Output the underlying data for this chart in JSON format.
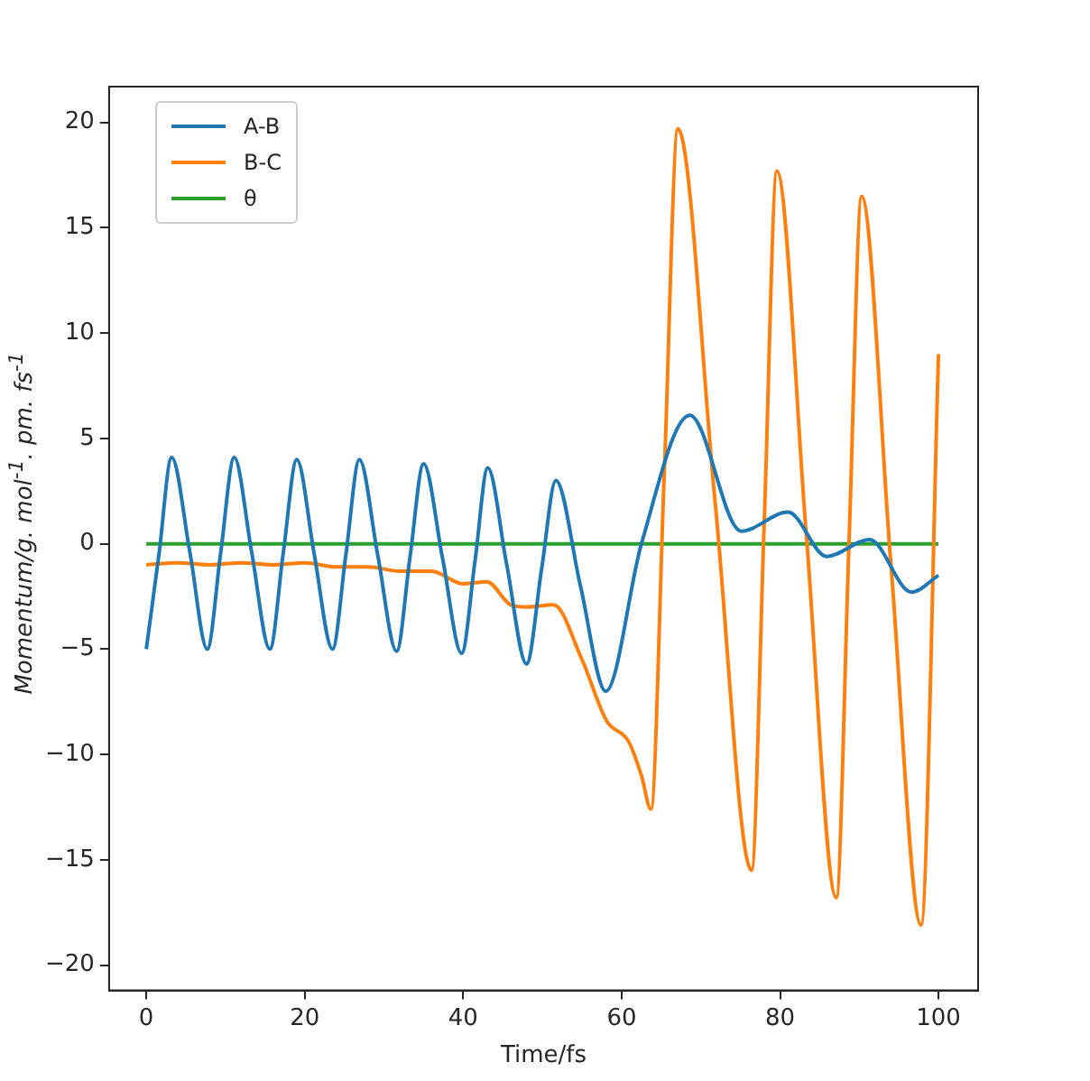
{
  "chart_data": {
    "type": "line",
    "xlabel": "Time/fs",
    "ylabel": "Momentum/g. mol$^{-1}$. pm. fs$^{-1}$",
    "xlim": [
      -4.7,
      105
    ],
    "xticks": [
      0,
      20,
      40,
      60,
      80,
      100
    ],
    "ylim": [
      -21.2,
      21.7
    ],
    "yticks": [
      -20,
      -15,
      -10,
      -5,
      0,
      5,
      10,
      15,
      20
    ],
    "grid": false,
    "legend": "top left",
    "marker": "none",
    "line_style": "solid",
    "series": [
      {
        "name": "A-B",
        "color": "#1f77b4",
        "x": [
          0,
          1.6,
          3.2,
          5.5,
          7.7,
          9.4,
          11.1,
          13.3,
          15.6,
          17.3,
          19.0,
          21.2,
          23.5,
          25.2,
          26.9,
          29.2,
          31.6,
          33.3,
          35.0,
          37.4,
          39.8,
          41.5,
          43.1,
          45.5,
          48.0,
          49.9,
          51.7,
          54.8,
          58.0,
          62.5,
          68.6,
          75.1,
          81.0,
          85.9,
          91.3,
          96.6,
          100
        ],
        "values": [
          -5.0,
          -0.5,
          4.1,
          -0.4,
          -5.0,
          -0.4,
          4.1,
          -0.4,
          -5.0,
          -0.4,
          4.0,
          -0.5,
          -5.0,
          -0.5,
          4.0,
          -0.5,
          -5.1,
          -0.6,
          3.8,
          -0.7,
          -5.2,
          -0.8,
          3.6,
          -1.0,
          -5.7,
          -1.2,
          3.0,
          -2.0,
          -7.0,
          0,
          6.1,
          0.6,
          1.5,
          -0.6,
          0.2,
          -2.3,
          -1.5
        ]
      },
      {
        "name": "B-C",
        "color": "#ff7f0e",
        "x": [
          0,
          4,
          8,
          12,
          16,
          20,
          24,
          28,
          32,
          36,
          40,
          43,
          46,
          48,
          51.4,
          55,
          58.1,
          60.9,
          62.5,
          63.7,
          65.4,
          67.1,
          71.8,
          76.4,
          78,
          79.6,
          83.3,
          87.1,
          88.7,
          90.3,
          94,
          97.8,
          100
        ],
        "values": [
          -1.0,
          -0.9,
          -1.0,
          -0.9,
          -1.0,
          -0.9,
          -1.1,
          -1.1,
          -1.3,
          -1.3,
          -1.9,
          -1.8,
          -2.9,
          -3.0,
          -2.9,
          -5.5,
          -8.4,
          -9.4,
          -11,
          -12.6,
          3.5,
          19.7,
          2,
          -15.5,
          1,
          17.7,
          0.5,
          -16.8,
          0,
          16.5,
          -1,
          -18.1,
          9.0
        ]
      },
      {
        "name": "θ",
        "color": "#2ca02c",
        "x": [
          0,
          100
        ],
        "values": [
          0,
          0
        ]
      }
    ]
  }
}
